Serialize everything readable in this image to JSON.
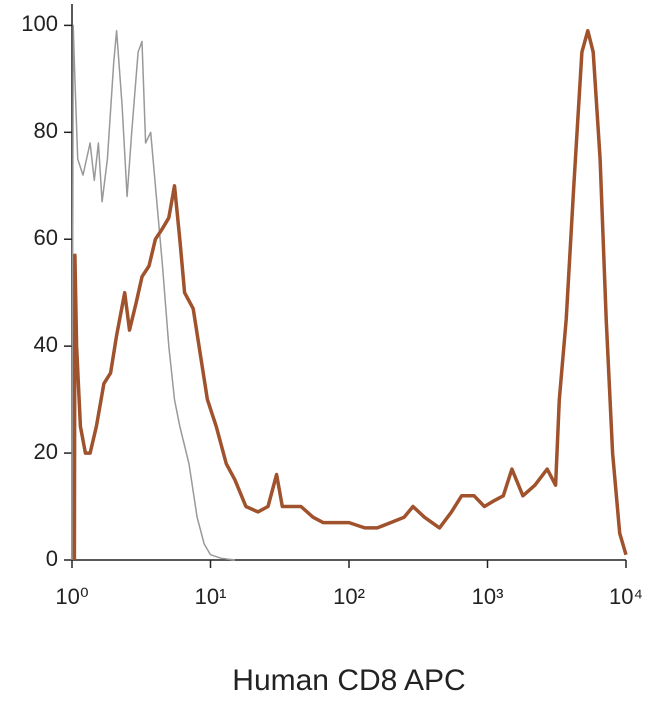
{
  "chart_data": {
    "type": "line",
    "xlabel": "Human CD8  APC",
    "xscale": "log",
    "xlim": [
      1,
      10000
    ],
    "ylim": [
      0,
      104
    ],
    "xticks": [
      {
        "value": 1,
        "label": "10⁰"
      },
      {
        "value": 10,
        "label": "10¹"
      },
      {
        "value": 100,
        "label": "10²"
      },
      {
        "value": 1000,
        "label": "10³"
      },
      {
        "value": 10000,
        "label": "10⁴"
      }
    ],
    "yticks": [
      0,
      20,
      40,
      60,
      80,
      100
    ],
    "series": [
      {
        "color": "#999999",
        "width": 1.5,
        "x": [
          1.0,
          1.02,
          1.05,
          1.1,
          1.2,
          1.35,
          1.45,
          1.55,
          1.65,
          1.8,
          2.0,
          2.1,
          2.3,
          2.5,
          2.7,
          3.0,
          3.2,
          3.4,
          3.7,
          4.0,
          4.5,
          5.0,
          5.5,
          6.0,
          7.0,
          8.0,
          9.0,
          10,
          12,
          15
        ],
        "values": [
          0,
          100,
          90,
          75,
          72,
          78,
          71,
          78,
          67,
          75,
          93,
          99,
          85,
          68,
          80,
          95,
          97,
          78,
          80,
          70,
          55,
          40,
          30,
          25,
          18,
          8,
          3,
          1,
          0.3,
          0
        ]
      },
      {
        "color": "#a0522d",
        "width": 3.5,
        "x": [
          1.04,
          1.05,
          1.08,
          1.15,
          1.25,
          1.35,
          1.5,
          1.7,
          1.9,
          2.1,
          2.4,
          2.6,
          2.9,
          3.2,
          3.6,
          4.0,
          4.5,
          5.0,
          5.5,
          6.0,
          6.5,
          7.5,
          8.5,
          9.5,
          11,
          13,
          15,
          18,
          22,
          26,
          30,
          33,
          38,
          45,
          55,
          65,
          80,
          100,
          130,
          160,
          200,
          250,
          290,
          350,
          450,
          550,
          650,
          800,
          950,
          1100,
          1300,
          1500,
          1800,
          2200,
          2700,
          3100,
          3300,
          3700,
          4200,
          4800,
          5300,
          5800,
          6500,
          7200,
          8000,
          9000,
          10000
        ],
        "values": [
          0,
          57,
          40,
          25,
          20,
          20,
          25,
          33,
          35,
          42,
          50,
          43,
          48,
          53,
          55,
          60,
          62,
          64,
          70,
          60,
          50,
          47,
          38,
          30,
          25,
          18,
          15,
          10,
          9,
          10,
          16,
          10,
          10,
          10,
          8,
          7,
          7,
          7,
          6,
          6,
          7,
          8,
          10,
          8,
          6,
          9,
          12,
          12,
          10,
          11,
          12,
          17,
          12,
          14,
          17,
          14,
          30,
          45,
          70,
          95,
          99,
          95,
          75,
          45,
          20,
          5,
          1
        ]
      }
    ]
  }
}
